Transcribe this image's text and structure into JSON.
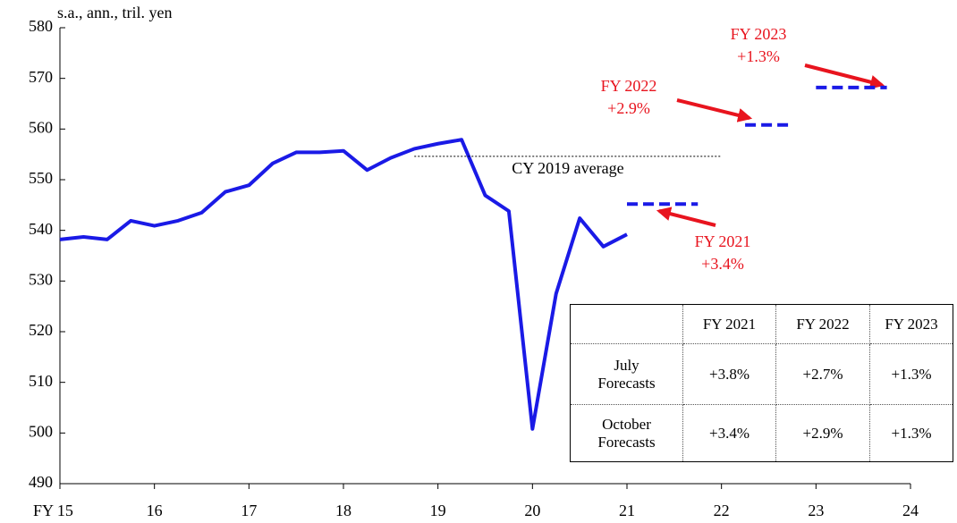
{
  "chart_data": {
    "type": "line",
    "y_axis_label": "s.a., ann., tril.  yen",
    "xlim": [
      15,
      24
    ],
    "xticks": [
      {
        "value": 15,
        "label": "FY 15"
      },
      16,
      17,
      18,
      19,
      20,
      21,
      22,
      23,
      24
    ],
    "ylim": [
      490,
      580
    ],
    "yticks": [
      490,
      500,
      510,
      520,
      530,
      540,
      550,
      560,
      570,
      580
    ],
    "series": [
      {
        "color": "#1a1ae6",
        "x": [
          15,
          15.25,
          15.5,
          15.75,
          16,
          16.25,
          16.5,
          16.75,
          17,
          17.25,
          17.5,
          17.75,
          18,
          18.25,
          18.5,
          18.75,
          19,
          19.25,
          19.5,
          19.75,
          20,
          20.25,
          20.5,
          20.75,
          21
        ],
        "values": [
          538.2,
          538.7,
          538.2,
          541.9,
          540.9,
          541.9,
          543.5,
          547.6,
          548.9,
          553.2,
          555.4,
          555.4,
          555.7,
          551.9,
          554.3,
          556.1,
          557.1,
          557.9,
          546.9,
          543.8,
          500.8,
          527.5,
          542.4,
          536.8,
          539.2
        ]
      }
    ],
    "reference_line": {
      "label": "CY 2019 average",
      "value": 554.6,
      "x": [
        18.75,
        22
      ]
    },
    "forecasts": [
      {
        "label": "FY 2021",
        "change": "+3.4%",
        "x": [
          21,
          21.75
        ],
        "value": 545.2
      },
      {
        "label": "FY 2022",
        "change": "+2.9%",
        "x": [
          22.25,
          22.75
        ],
        "value": 560.8
      },
      {
        "label": "FY 2023",
        "change": "+1.3%",
        "x": [
          23,
          23.75
        ],
        "value": 568.2
      }
    ],
    "annotation_color": "#e8141e",
    "table": {
      "columns": [
        "FY 2021",
        "FY 2022",
        "FY 2023"
      ],
      "rows": [
        {
          "label": "July Forecasts",
          "values": [
            "+3.8%",
            "+2.7%",
            "+1.3%"
          ]
        },
        {
          "label": "October Forecasts",
          "values": [
            "+3.4%",
            "+2.9%",
            "+1.3%"
          ]
        }
      ]
    }
  }
}
